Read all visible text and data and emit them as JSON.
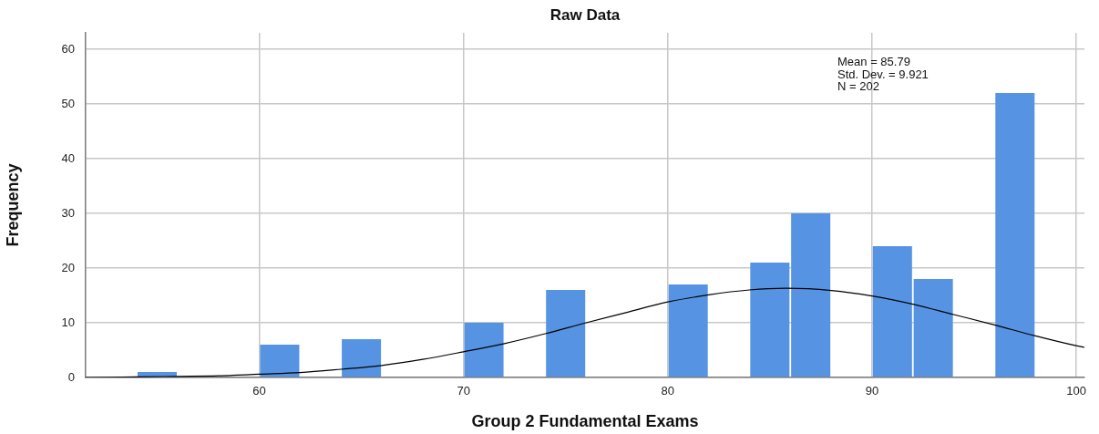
{
  "chart_data": {
    "type": "histogram",
    "title": "Raw Data",
    "xlabel": "Group 2 Fundamental Exams",
    "ylabel": "Frequency",
    "bins": [
      54,
      56,
      58,
      60,
      62,
      64,
      66,
      68,
      70,
      72,
      74,
      76,
      78,
      80,
      82,
      84,
      86,
      88,
      90,
      92,
      94,
      96,
      98
    ],
    "series": [
      {
        "color": "#5694e3",
        "values": [
          1,
          0,
          0,
          6,
          0,
          7,
          0,
          0,
          10,
          0,
          16,
          0,
          0,
          17,
          0,
          21,
          30,
          0,
          24,
          18,
          0,
          52
        ]
      },
      {
        "type": "line",
        "color": "#000000",
        "x": [
          51.5,
          54,
          56,
          58,
          60,
          62,
          64,
          66,
          68,
          70,
          72,
          74,
          76,
          78,
          80,
          82,
          84,
          85.8,
          88,
          90,
          92,
          94,
          96,
          98,
          100,
          100.4
        ],
        "values": [
          0.0,
          0.1,
          0.2,
          0.3,
          0.6,
          0.9,
          1.5,
          2.2,
          3.3,
          4.7,
          6.2,
          8.0,
          10.0,
          11.9,
          13.8,
          15.1,
          16.0,
          16.3,
          15.9,
          14.9,
          13.4,
          11.5,
          9.6,
          7.6,
          5.8,
          5.5
        ]
      }
    ],
    "xlim": [
      51.5,
      100.4
    ],
    "xticks": [
      60,
      70,
      80,
      90,
      100
    ],
    "ylim": [
      0,
      63
    ],
    "yticks": [
      0,
      10,
      20,
      30,
      40,
      50,
      60
    ],
    "grid": true,
    "annotations": [
      "Mean = 85.79",
      "Std. Dev. = 9.921",
      "N = 202"
    ]
  }
}
